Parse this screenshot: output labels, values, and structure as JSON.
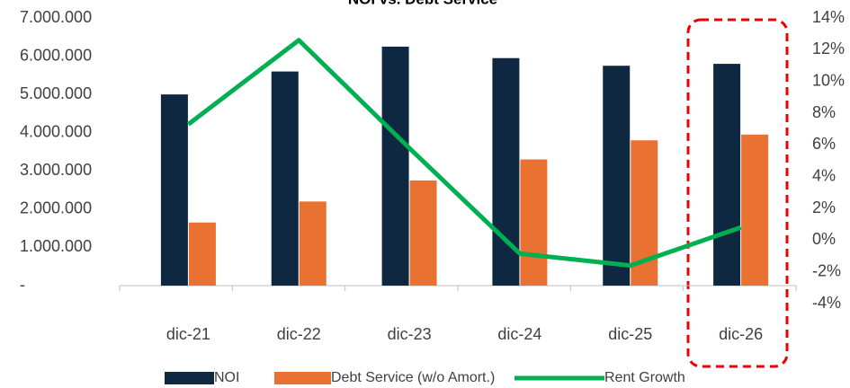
{
  "chart_data": {
    "type": "bar_line",
    "title": "NOI vs. Debt Service",
    "categories": [
      "dic-21",
      "dic-22",
      "dic-23",
      "dic-24",
      "dic-25",
      "dic-26"
    ],
    "series": [
      {
        "name": "NOI",
        "color": "#0e2841",
        "values": [
          5000000,
          5600000,
          6250000,
          5950000,
          5750000,
          5800000
        ]
      },
      {
        "name": "Debt Service (w/o Amort.)",
        "color": "#e97132",
        "values": [
          1650000,
          2200000,
          2750000,
          3300000,
          3800000,
          3950000
        ]
      },
      {
        "name": "Rent Growth",
        "color": "#00b050",
        "axis": "y2",
        "values": [
          7.3,
          12.6,
          5.8,
          -0.85,
          -1.6,
          0.8
        ]
      }
    ],
    "ylim": [
      0,
      7000000
    ],
    "yticks": [
      {
        "value": 0,
        "label": "-"
      },
      {
        "value": 1000000,
        "label": "1.000.000"
      },
      {
        "value": 2000000,
        "label": "2.000.000"
      },
      {
        "value": 3000000,
        "label": "3.000.000"
      },
      {
        "value": 4000000,
        "label": "4.000.000"
      },
      {
        "value": 5000000,
        "label": "5.000.000"
      },
      {
        "value": 6000000,
        "label": "6.000.000"
      },
      {
        "value": 7000000,
        "label": "7.000.000"
      }
    ],
    "y2lim": [
      -4,
      14
    ],
    "y2ticks": [
      {
        "value": -4,
        "label": "-4%"
      },
      {
        "value": -2,
        "label": "-2%"
      },
      {
        "value": 0,
        "label": "0%"
      },
      {
        "value": 2,
        "label": "2%"
      },
      {
        "value": 4,
        "label": "4%"
      },
      {
        "value": 6,
        "label": "6%"
      },
      {
        "value": 8,
        "label": "8%"
      },
      {
        "value": 10,
        "label": "10%"
      },
      {
        "value": 12,
        "label": "12%"
      },
      {
        "value": 14,
        "label": "14%"
      }
    ]
  }
}
